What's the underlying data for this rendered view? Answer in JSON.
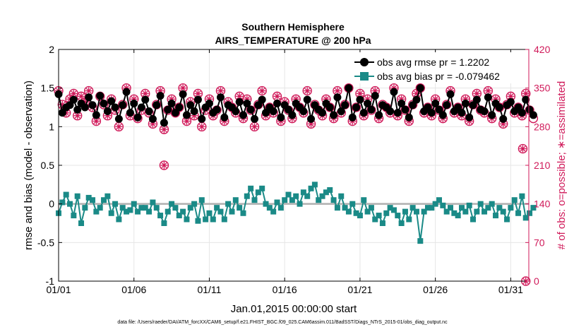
{
  "chart_data": {
    "type": "line",
    "title": "Southern Hemisphere",
    "subtitle": "AIRS_TEMPERATURE @ 200 hPa",
    "xlabel": "Jan.01,2015 00:00:00 start",
    "ylabel_left": "rmse and bias (model - observation)",
    "ylabel_right": "# of obs: o=possible; ∗=assimilated",
    "footer": "data file: /Users/raeder/DAI/ATM_forcXX/CAM6_setup/f.e21.FHIST_BGC.f09_025.CAM6assim.011/BadSST/Diags_NTrS_2015-01/obs_diag_output.nc",
    "xlim": [
      1,
      32.2
    ],
    "ylim_left": [
      -1,
      2
    ],
    "ylim_right": [
      0,
      420
    ],
    "x_ticks": [
      1,
      6,
      11,
      16,
      21,
      26,
      31
    ],
    "x_tick_labels": [
      "01/01",
      "01/06",
      "01/11",
      "01/16",
      "01/21",
      "01/26",
      "01/31"
    ],
    "y_ticks_left": [
      -1,
      -0.5,
      0,
      0.5,
      1,
      1.5,
      2
    ],
    "y_tick_labels_left": [
      "-1",
      "-0.5",
      "0",
      "0.5",
      "1",
      "1.5",
      "2"
    ],
    "y_ticks_right": [
      0,
      70,
      140,
      210,
      280,
      350,
      420
    ],
    "y_tick_labels_right": [
      "0",
      "70",
      "140",
      "210",
      "280",
      "350",
      "420"
    ],
    "grid": true,
    "legend_position": "top-right",
    "x_start": 1.0,
    "x_step": 0.25,
    "series": [
      {
        "name": "obs avg rmse pr = 1.2202",
        "color": "#000000",
        "axis": "left",
        "values": [
          1.42,
          1.18,
          1.25,
          1.28,
          1.35,
          1.22,
          1.3,
          1.25,
          1.38,
          1.28,
          1.15,
          1.4,
          1.3,
          1.2,
          1.33,
          1.25,
          1.1,
          1.28,
          1.45,
          1.18,
          1.3,
          1.12,
          1.25,
          1.35,
          1.2,
          1.1,
          1.28,
          1.4,
          1.05,
          1.22,
          1.3,
          1.18,
          1.25,
          1.42,
          1.15,
          1.28,
          1.2,
          1.35,
          1.1,
          1.25,
          1.3,
          1.18,
          1.22,
          1.38,
          1.12,
          1.28,
          1.25,
          1.2,
          1.32,
          1.15,
          1.3,
          1.22,
          1.1,
          1.28,
          1.35,
          1.18,
          1.25,
          1.2,
          1.3,
          1.12,
          1.28,
          1.22,
          1.15,
          1.3,
          1.25,
          1.2,
          1.35,
          1.1,
          1.28,
          1.22,
          1.18,
          1.3,
          1.25,
          1.15,
          1.38,
          1.2,
          1.28,
          1.5,
          1.12,
          1.25,
          1.35,
          1.18,
          1.3,
          1.22,
          1.4,
          1.15,
          1.28,
          1.25,
          1.2,
          1.45,
          1.18,
          1.3,
          1.22,
          1.12,
          1.28,
          1.35,
          1.5,
          1.2,
          1.25,
          1.18,
          1.3,
          1.22,
          1.15,
          1.28,
          1.42,
          1.2,
          1.25,
          1.18,
          1.3,
          1.12,
          1.28,
          1.35,
          1.22,
          1.2,
          1.38,
          1.15,
          1.3,
          1.25,
          1.1,
          1.28,
          1.32,
          1.2,
          1.25,
          1.18,
          1.35,
          1.22,
          1.15
        ]
      },
      {
        "name": "obs avg bias pr = -0.079462",
        "color": "#1a8a87",
        "axis": "left",
        "values": [
          -0.12,
          0.02,
          0.12,
          0.0,
          -0.15,
          0.1,
          -0.25,
          -0.05,
          0.08,
          0.05,
          -0.1,
          -0.05,
          0.05,
          0.1,
          -0.12,
          0.0,
          -0.2,
          -0.05,
          -0.1,
          -0.08,
          0.0,
          -0.1,
          -0.05,
          -0.05,
          -0.1,
          0.02,
          -0.05,
          -0.15,
          -0.25,
          -0.1,
          0.0,
          -0.05,
          -0.15,
          -0.1,
          -0.2,
          -0.05,
          0.0,
          -0.22,
          0.05,
          -0.2,
          -0.12,
          -0.2,
          -0.05,
          -0.1,
          -0.2,
          0.0,
          -0.1,
          0.05,
          -0.05,
          -0.12,
          0.1,
          0.2,
          0.05,
          0.15,
          0.2,
          0.0,
          -0.05,
          -0.1,
          0.02,
          -0.05,
          0.05,
          0.12,
          0.05,
          0.1,
          0.0,
          0.15,
          0.1,
          0.2,
          0.25,
          0.05,
          0.1,
          0.15,
          0.18,
          0.05,
          -0.05,
          0.1,
          -0.05,
          -0.1,
          0.0,
          -0.12,
          -0.15,
          0.05,
          -0.1,
          -0.05,
          -0.2,
          -0.15,
          -0.25,
          -0.12,
          -0.05,
          -0.08,
          -0.15,
          -0.25,
          -0.1,
          -0.2,
          -0.05,
          -0.1,
          -0.48,
          -0.1,
          -0.05,
          -0.05,
          0.0,
          0.05,
          -0.02,
          -0.1,
          -0.05,
          -0.12,
          -0.15,
          -0.05,
          -0.1,
          -0.02,
          -0.2,
          -0.1,
          0.0,
          -0.1,
          -0.05,
          0.0,
          -0.15,
          -0.05,
          -0.1,
          -0.2,
          -0.05,
          0.05,
          -0.12,
          0.1,
          -0.18,
          -0.12,
          -0.05
        ]
      }
    ],
    "obs_counts": {
      "color": "#d01a5a",
      "axis": "right",
      "possible": [
        345,
        320,
        305,
        330,
        340,
        300,
        335,
        325,
        345,
        315,
        290,
        335,
        320,
        300,
        330,
        310,
        280,
        320,
        350,
        300,
        330,
        295,
        310,
        340,
        305,
        285,
        320,
        345,
        275,
        310,
        330,
        305,
        315,
        350,
        290,
        325,
        300,
        340,
        280,
        310,
        330,
        300,
        310,
        345,
        290,
        325,
        315,
        305,
        335,
        295,
        330,
        310,
        280,
        320,
        345,
        300,
        315,
        305,
        335,
        290,
        325,
        310,
        295,
        330,
        315,
        305,
        345,
        285,
        320,
        310,
        300,
        330,
        315,
        295,
        345,
        305,
        320,
        350,
        290,
        315,
        340,
        300,
        330,
        310,
        345,
        295,
        320,
        315,
        305,
        350,
        300,
        330,
        310,
        290,
        320,
        340,
        350,
        305,
        315,
        300,
        330,
        310,
        295,
        320,
        345,
        305,
        315,
        300,
        330,
        290,
        320,
        340,
        310,
        305,
        345,
        295,
        330,
        315,
        285,
        320,
        335,
        305,
        315,
        300,
        340,
        310,
        295
      ],
      "assimilated_mask": [
        1,
        1,
        1,
        1,
        1,
        1,
        1,
        1,
        1,
        1,
        1,
        1,
        1,
        1,
        1,
        1,
        1,
        1,
        1,
        1,
        1,
        1,
        1,
        1,
        1,
        1,
        1,
        1,
        1,
        1,
        1,
        1,
        1,
        1,
        1,
        1,
        1,
        1,
        1,
        1,
        1,
        1,
        1,
        1,
        1,
        1,
        1,
        1,
        1,
        1,
        1,
        1,
        1,
        1,
        1,
        1,
        1,
        1,
        1,
        1,
        1,
        1,
        1,
        1,
        1,
        1,
        1,
        1,
        1,
        1,
        1,
        1,
        1,
        1,
        1,
        1,
        1,
        1,
        1,
        1,
        1,
        1,
        1,
        1,
        1,
        1,
        1,
        1,
        1,
        1,
        1,
        1,
        1,
        1,
        1,
        1,
        1,
        1,
        1,
        1,
        1,
        1,
        1,
        1,
        1,
        1,
        1,
        1,
        1,
        1,
        1,
        1,
        1,
        1,
        1,
        1,
        1,
        1,
        1,
        1,
        1,
        1,
        1,
        1,
        1
      ],
      "extra_points": [
        {
          "x": 8.0,
          "y": 210
        },
        {
          "x": 31.8,
          "y": 240
        },
        {
          "x": 32.0,
          "y": 0
        }
      ]
    },
    "zero_line": {
      "y": 0,
      "color": "#b0b0b0"
    }
  }
}
